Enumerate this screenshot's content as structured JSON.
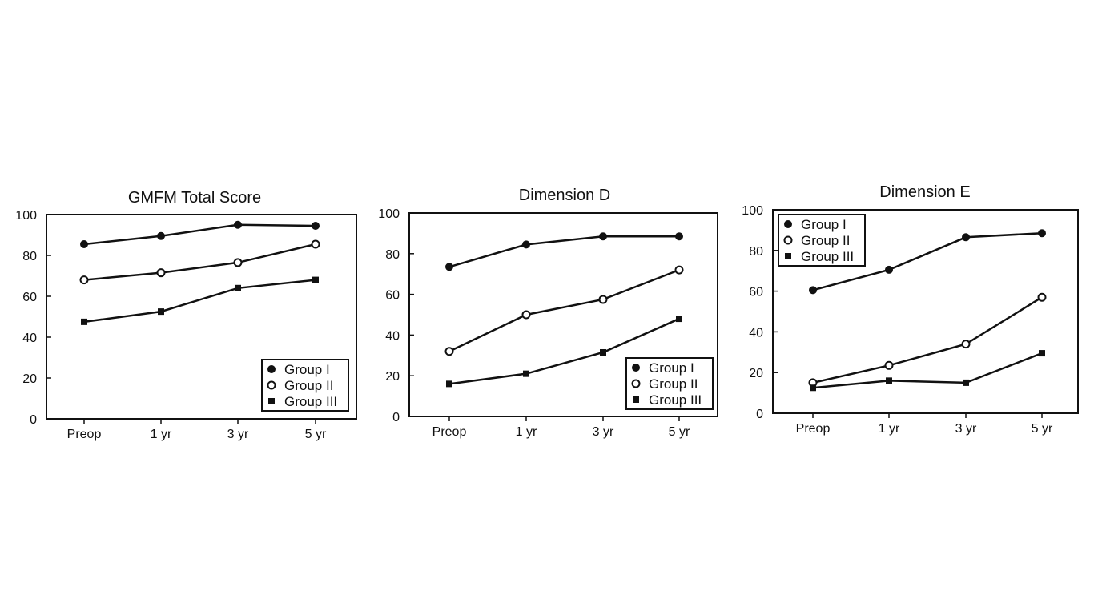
{
  "chart_data": [
    {
      "type": "line",
      "title": "GMFM Total Score",
      "categories": [
        "Preop",
        "1 yr",
        "3 yr",
        "5 yr"
      ],
      "ylim": [
        0,
        100
      ],
      "yticks": [
        0,
        20,
        40,
        60,
        80,
        100
      ],
      "grid": false,
      "legend_position": "bottom-right",
      "series": [
        {
          "name": "Group I",
          "marker": "filled-circle",
          "values": [
            85.5,
            89.5,
            95,
            94.5
          ]
        },
        {
          "name": "Group II",
          "marker": "open-circle",
          "values": [
            68,
            71.5,
            76.5,
            85.5
          ]
        },
        {
          "name": "Group III",
          "marker": "filled-square",
          "values": [
            47.5,
            52.5,
            64,
            68
          ]
        }
      ]
    },
    {
      "type": "line",
      "title": "Dimension D",
      "categories": [
        "Preop",
        "1 yr",
        "3 yr",
        "5 yr"
      ],
      "ylim": [
        0,
        100
      ],
      "yticks": [
        0,
        20,
        40,
        60,
        80,
        100
      ],
      "grid": false,
      "legend_position": "bottom-right",
      "series": [
        {
          "name": "Group I",
          "marker": "filled-circle",
          "values": [
            73.5,
            84.5,
            88.5,
            88.5
          ]
        },
        {
          "name": "Group II",
          "marker": "open-circle",
          "values": [
            32,
            50,
            57.5,
            72
          ]
        },
        {
          "name": "Group III",
          "marker": "filled-square",
          "values": [
            16,
            21,
            31.5,
            48
          ]
        }
      ]
    },
    {
      "type": "line",
      "title": "Dimension E",
      "categories": [
        "Preop",
        "1 yr",
        "3 yr",
        "5 yr"
      ],
      "ylim": [
        0,
        100
      ],
      "yticks": [
        0,
        20,
        40,
        60,
        80,
        100
      ],
      "grid": false,
      "legend_position": "top-left",
      "series": [
        {
          "name": "Group I",
          "marker": "filled-circle",
          "values": [
            60.5,
            70.5,
            86.5,
            88.5
          ]
        },
        {
          "name": "Group II",
          "marker": "open-circle",
          "values": [
            15,
            23.5,
            34,
            57
          ]
        },
        {
          "name": "Group III",
          "marker": "filled-square",
          "values": [
            12.5,
            16,
            15,
            29.5
          ]
        }
      ]
    }
  ]
}
